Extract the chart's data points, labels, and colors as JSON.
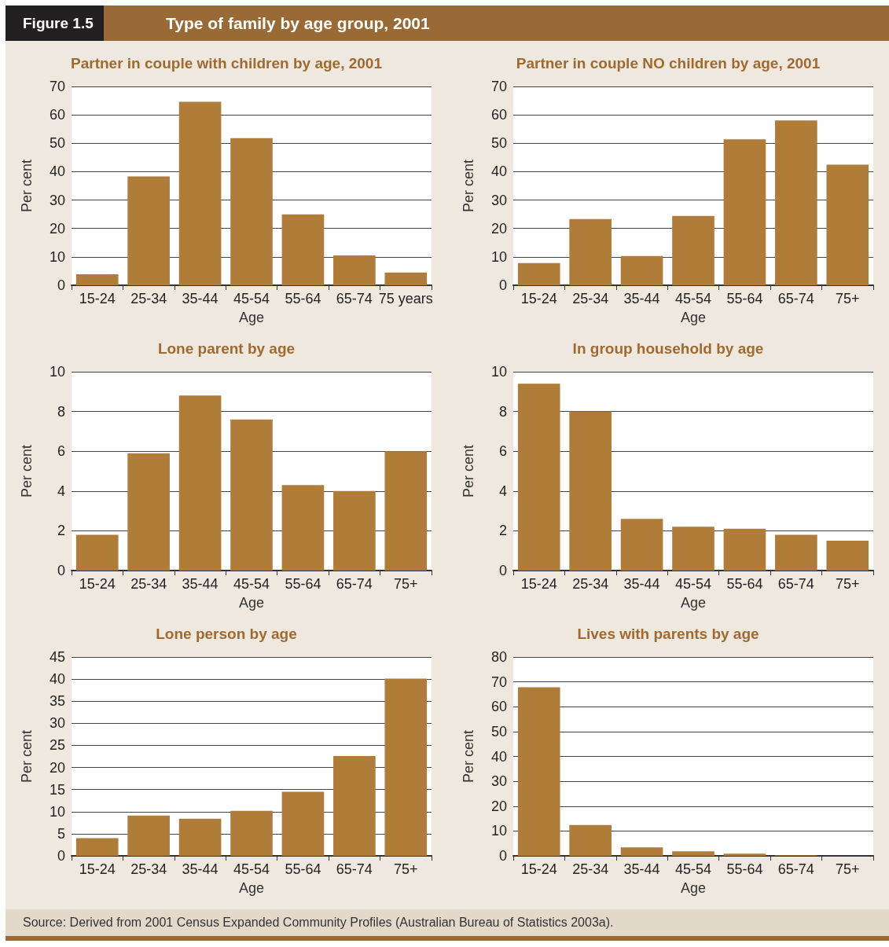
{
  "chart_data": [
    {
      "type": "other",
      "subtitle": "Figure 1.5",
      "title": "Type of family by age group, 2001"
    },
    {
      "type": "bar",
      "title": "Partner in couple with children by age, 2001",
      "xlabel": "Age",
      "ylabel": "Per cent",
      "categories": [
        "15-24",
        "25-34",
        "35-44",
        "45-54",
        "55-64",
        "65-74",
        "75 years"
      ],
      "values": [
        3.9,
        38.3,
        64.6,
        51.8,
        25.0,
        10.5,
        4.5
      ],
      "color": "#b07c3a",
      "ylim": [
        0,
        70
      ],
      "yticks": [
        0,
        10,
        20,
        30,
        40,
        50,
        60,
        70
      ],
      "grid": "y"
    },
    {
      "type": "bar",
      "title": "Partner in couple NO children by age, 2001",
      "xlabel": "Age",
      "ylabel": "Per cent",
      "categories": [
        "15-24",
        "25-34",
        "35-44",
        "45-54",
        "55-64",
        "65-74",
        "75+"
      ],
      "values": [
        7.8,
        23.3,
        10.3,
        24.4,
        51.4,
        58.0,
        42.5
      ],
      "color": "#b07c3a",
      "ylim": [
        0,
        70
      ],
      "yticks": [
        0,
        10,
        20,
        30,
        40,
        50,
        60,
        70
      ],
      "grid": "y"
    },
    {
      "type": "bar",
      "title": "Lone parent by age",
      "xlabel": "Age",
      "ylabel": "Per cent",
      "categories": [
        "15-24",
        "25-34",
        "35-44",
        "45-54",
        "55-64",
        "65-74",
        "75+"
      ],
      "values": [
        1.8,
        5.9,
        8.8,
        7.6,
        4.3,
        4.0,
        6.0
      ],
      "color": "#b07c3a",
      "ylim": [
        0,
        10
      ],
      "yticks": [
        0,
        2,
        4,
        6,
        8,
        10
      ],
      "grid": "y"
    },
    {
      "type": "bar",
      "title": "In group household by age",
      "xlabel": "Age",
      "ylabel": "Per cent",
      "categories": [
        "15-24",
        "25-34",
        "35-44",
        "45-54",
        "55-64",
        "65-74",
        "75+"
      ],
      "values": [
        9.4,
        8.0,
        2.6,
        2.2,
        2.1,
        1.8,
        1.5
      ],
      "color": "#b07c3a",
      "ylim": [
        0,
        10
      ],
      "yticks": [
        0,
        2,
        4,
        6,
        8,
        10
      ],
      "grid": "y"
    },
    {
      "type": "bar",
      "title": "Lone person by age",
      "xlabel": "Age",
      "ylabel": "Per cent",
      "categories": [
        "15-24",
        "25-34",
        "35-44",
        "45-54",
        "55-64",
        "65-74",
        "75+"
      ],
      "values": [
        4.0,
        9.1,
        8.4,
        10.2,
        14.5,
        22.6,
        40.1
      ],
      "color": "#b07c3a",
      "ylim": [
        0,
        45
      ],
      "yticks": [
        0,
        5,
        10,
        15,
        20,
        25,
        30,
        35,
        40,
        45
      ],
      "grid": "y"
    },
    {
      "type": "bar",
      "title": "Lives with parents by age",
      "xlabel": "Age",
      "ylabel": "Per cent",
      "categories": [
        "15-24",
        "25-34",
        "35-44",
        "45-54",
        "55-64",
        "65-74",
        "75+"
      ],
      "values": [
        67.8,
        12.4,
        3.4,
        1.8,
        0.9,
        0.2,
        0
      ],
      "color": "#b07c3a",
      "ylim": [
        0,
        80
      ],
      "yticks": [
        0,
        10,
        20,
        30,
        40,
        50,
        60,
        70,
        80
      ],
      "grid": "y"
    },
    {
      "type": "other",
      "annotations": [
        "Source: Derived from 2001 Census Expanded Community Profiles (Australian Bureau of Statistics 2003a)."
      ]
    }
  ]
}
